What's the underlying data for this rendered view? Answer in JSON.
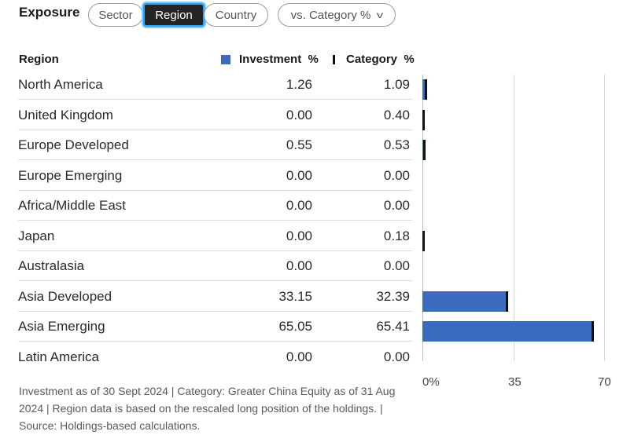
{
  "title": "Exposure",
  "tabs": [
    {
      "label": "Sector",
      "active": false
    },
    {
      "label": "Region",
      "active": true
    },
    {
      "label": "Country",
      "active": false
    }
  ],
  "compare_dropdown": {
    "label": "vs. Category %",
    "icon": "chevron-down-icon"
  },
  "table": {
    "headers": {
      "region": "Region",
      "investment": "Investment  %",
      "category": "Category  %"
    },
    "rows": [
      {
        "region": "North America",
        "investment": "1.26",
        "category": "1.09"
      },
      {
        "region": "United Kingdom",
        "investment": "0.00",
        "category": "0.40"
      },
      {
        "region": "Europe Developed",
        "investment": "0.55",
        "category": "0.53"
      },
      {
        "region": "Europe Emerging",
        "investment": "0.00",
        "category": "0.00"
      },
      {
        "region": "Africa/Middle East",
        "investment": "0.00",
        "category": "0.00"
      },
      {
        "region": "Japan",
        "investment": "0.00",
        "category": "0.18"
      },
      {
        "region": "Australasia",
        "investment": "0.00",
        "category": "0.00"
      },
      {
        "region": "Asia Developed",
        "investment": "33.15",
        "category": "32.39"
      },
      {
        "region": "Asia Emerging",
        "investment": "65.05",
        "category": "65.41"
      },
      {
        "region": "Latin America",
        "investment": "0.00",
        "category": "0.00"
      }
    ]
  },
  "chart_data": {
    "type": "bar",
    "orientation": "horizontal",
    "categories": [
      "North America",
      "United Kingdom",
      "Europe Developed",
      "Europe Emerging",
      "Africa/Middle East",
      "Japan",
      "Australasia",
      "Asia Developed",
      "Asia Emerging",
      "Latin America"
    ],
    "series": [
      {
        "name": "Investment %",
        "values": [
          1.26,
          0.0,
          0.55,
          0.0,
          0.0,
          0.0,
          0.0,
          33.15,
          65.05,
          0.0
        ],
        "color": "#3a6bbf"
      },
      {
        "name": "Category %",
        "values": [
          1.09,
          0.4,
          0.53,
          0.0,
          0.0,
          0.18,
          0.0,
          32.39,
          65.41,
          0.0
        ],
        "color": "#111111"
      }
    ],
    "xlim": [
      0,
      70
    ],
    "ticks": [
      "0%",
      "35",
      "70"
    ],
    "grid": true
  },
  "colors": {
    "accent": "#3a6bbf",
    "active_tab_bg": "#242424",
    "active_tab_glow": "#2aa5ff"
  },
  "footnote": "Investment as of 30 Sept 2024 | Category: Greater China Equity as of 31 Aug 2024 | Region data is based on the rescaled long position of the holdings. | Source: Holdings-based calculations."
}
